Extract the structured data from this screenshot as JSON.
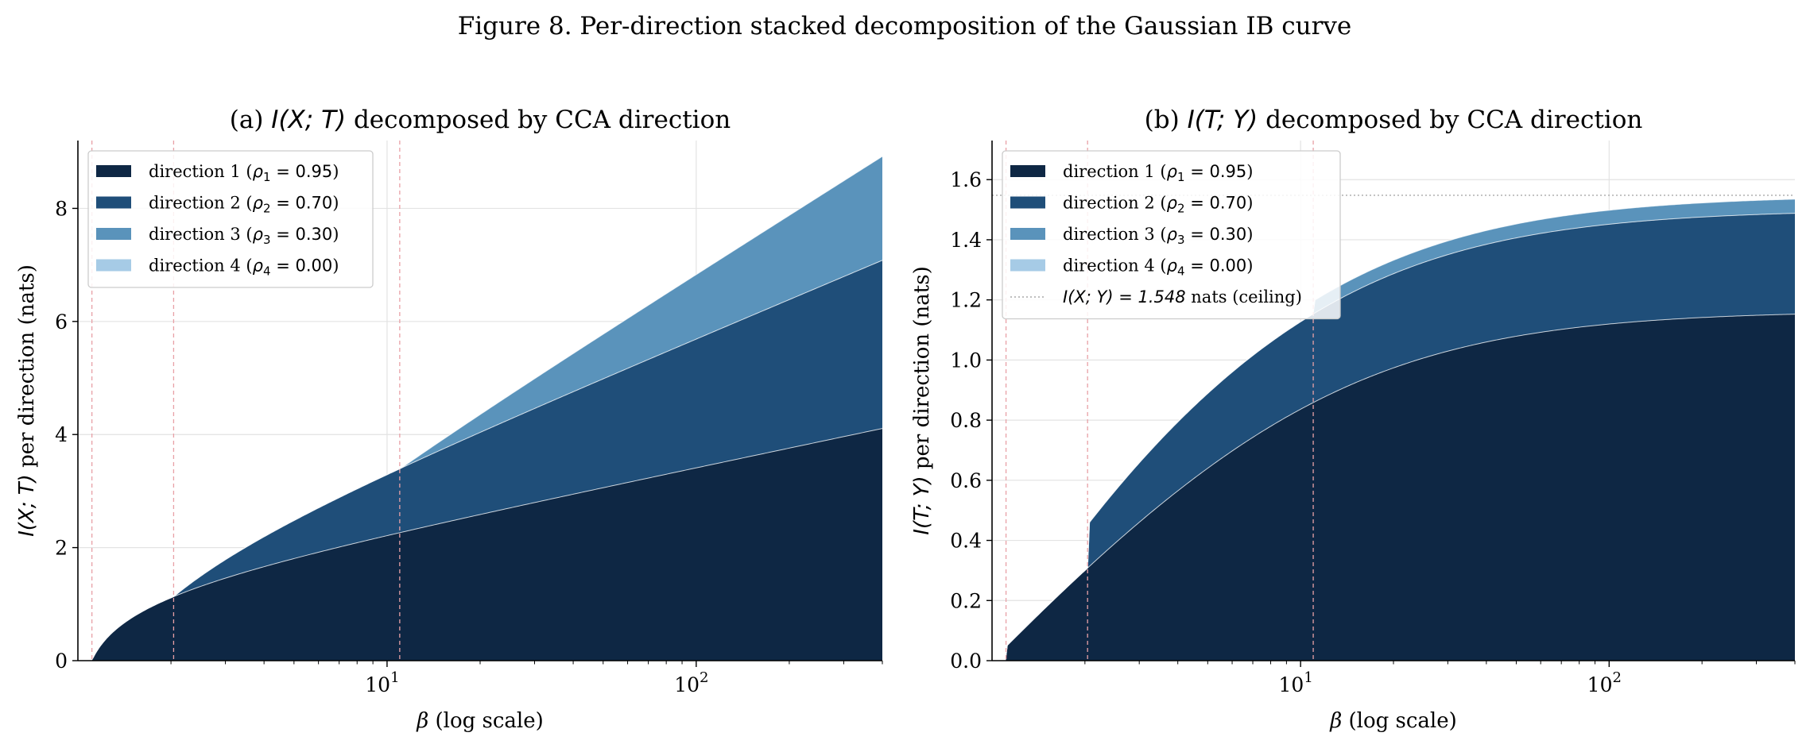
{
  "figure_title": "Figure 8. Per-direction stacked decomposition of the Gaussian IB curve",
  "colors": {
    "d1": "#0e2744",
    "d2": "#1f4e79",
    "d3": "#5a93bb",
    "d4": "#a6cbe6",
    "vline": "#e8a0a6",
    "grid": "#e3e3e3",
    "ceiling": "#a8a8a8"
  },
  "chart_data": [
    {
      "type": "area",
      "panel": "a",
      "title_prefix": "(a) ",
      "title_math": "I(X; T)",
      "title_suffix": " decomposed by CCA direction",
      "xlabel_math": "β",
      "xlabel_text": "  (log scale)",
      "ylabel_math": "I(X; T)",
      "ylabel_text": "  per direction  (nats)",
      "x_scale": "log",
      "xlim": [
        1.0,
        400
      ],
      "ylim": [
        0,
        9.2
      ],
      "yticks": [
        0,
        2,
        4,
        6,
        8
      ],
      "ytick_labels": [
        "0",
        "2",
        "4",
        "6",
        "8"
      ],
      "xticks": [
        10,
        100
      ],
      "xtick_base": "10",
      "xtick_exps": [
        "1",
        "2"
      ],
      "critical_betas": [
        1.11,
        2.04,
        10.99
      ],
      "grid": true,
      "legend_position": "top-left",
      "series": [
        {
          "name": "direction 1",
          "rho_label": "ρ",
          "rho_sub": "1",
          "rho_value": " = 0.95",
          "rho": 0.95
        },
        {
          "name": "direction 2",
          "rho_label": "ρ",
          "rho_sub": "2",
          "rho_value": " = 0.70",
          "rho": 0.7
        },
        {
          "name": "direction 3",
          "rho_label": "ρ",
          "rho_sub": "3",
          "rho_value": " = 0.30",
          "rho": 0.3
        },
        {
          "name": "direction 4",
          "rho_label": "ρ",
          "rho_sub": "4",
          "rho_value": " = 0.00",
          "rho": 0.0
        }
      ]
    },
    {
      "type": "area",
      "panel": "b",
      "title_prefix": "(b) ",
      "title_math": "I(T; Y)",
      "title_suffix": " decomposed by CCA direction",
      "xlabel_math": "β",
      "xlabel_text": "  (log scale)",
      "ylabel_math": "I(T; Y)",
      "ylabel_text": "  per direction  (nats)",
      "x_scale": "log",
      "xlim": [
        1.0,
        400
      ],
      "ylim": [
        0,
        1.73
      ],
      "yticks": [
        0.0,
        0.2,
        0.4,
        0.6,
        0.8,
        1.0,
        1.2,
        1.4,
        1.6
      ],
      "ytick_labels": [
        "0.0",
        "0.2",
        "0.4",
        "0.6",
        "0.8",
        "1.0",
        "1.2",
        "1.4",
        "1.6"
      ],
      "xticks": [
        10,
        100
      ],
      "xtick_base": "10",
      "xtick_exps": [
        "1",
        "2"
      ],
      "critical_betas": [
        1.11,
        2.04,
        10.99
      ],
      "grid": true,
      "legend_position": "top-left",
      "ceiling": {
        "value": 1.548,
        "label_math": "I(X; Y) = 1.548",
        "label_text": " nats  (ceiling)"
      },
      "series": [
        {
          "name": "direction 1",
          "rho_label": "ρ",
          "rho_sub": "1",
          "rho_value": " = 0.95",
          "rho": 0.95
        },
        {
          "name": "direction 2",
          "rho_label": "ρ",
          "rho_sub": "2",
          "rho_value": " = 0.70",
          "rho": 0.7
        },
        {
          "name": "direction 3",
          "rho_label": "ρ",
          "rho_sub": "3",
          "rho_value": " = 0.30",
          "rho": 0.3
        },
        {
          "name": "direction 4",
          "rho_label": "ρ",
          "rho_sub": "4",
          "rho_value": " = 0.00",
          "rho": 0.0
        }
      ]
    }
  ]
}
